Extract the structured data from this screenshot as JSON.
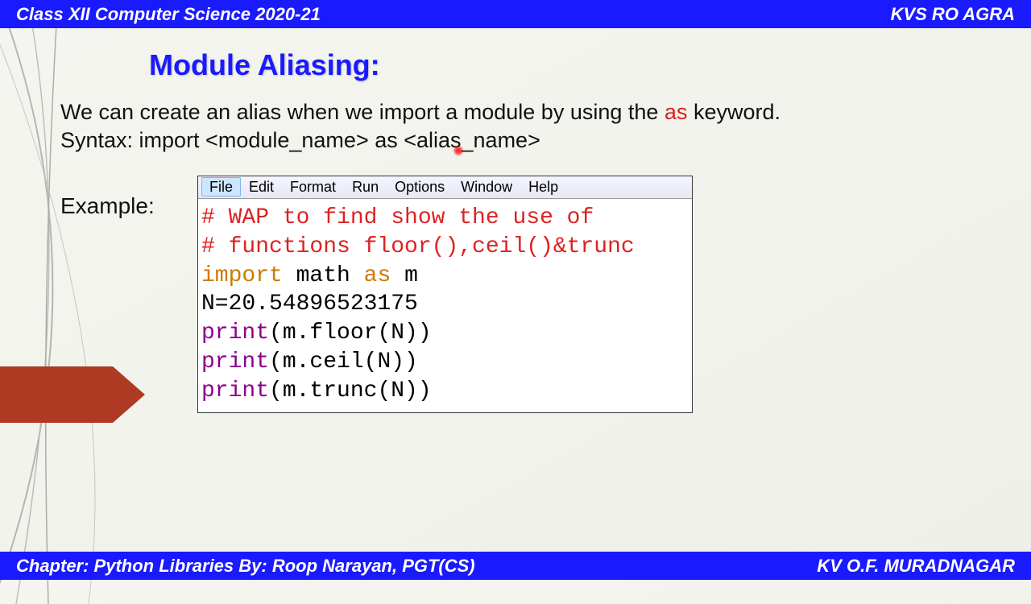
{
  "header": {
    "left": "Class XII Computer Science 2020-21",
    "right": "KVS  RO  AGRA"
  },
  "footer": {
    "left": "Chapter:  Python Libraries    By:  Roop Narayan, PGT(CS)",
    "right": "KV O.F. MURADNAGAR"
  },
  "slide": {
    "title": "Module Aliasing:",
    "para1_pre": "We can create an alias when we import a module by using the ",
    "para1_kw": "as",
    "para1_post": " keyword.",
    "para2": "Syntax: import <module_name> as <alias_name>",
    "example_label": "Example:"
  },
  "ide": {
    "menu": [
      "File",
      "Edit",
      "Format",
      "Run",
      "Options",
      "Window",
      "Help"
    ],
    "selected_menu": "File",
    "code_lines": [
      {
        "segments": [
          {
            "cls": "c-comment",
            "t": "# WAP to find show the use of"
          }
        ]
      },
      {
        "segments": [
          {
            "cls": "c-comment",
            "t": "# functions floor(),ceil()&trunc"
          }
        ]
      },
      {
        "segments": [
          {
            "cls": "c-keyword",
            "t": "import"
          },
          {
            "cls": "c-text",
            "t": " math "
          },
          {
            "cls": "c-keyword",
            "t": "as"
          },
          {
            "cls": "c-text",
            "t": " m"
          }
        ]
      },
      {
        "segments": [
          {
            "cls": "c-text",
            "t": "N=20.54896523175"
          }
        ]
      },
      {
        "segments": [
          {
            "cls": "c-builtin",
            "t": "print"
          },
          {
            "cls": "c-text",
            "t": "(m.floor(N))"
          }
        ]
      },
      {
        "segments": [
          {
            "cls": "c-builtin",
            "t": "print"
          },
          {
            "cls": "c-text",
            "t": "(m.ceil(N))"
          }
        ]
      },
      {
        "segments": [
          {
            "cls": "c-builtin",
            "t": "print"
          },
          {
            "cls": "c-text",
            "t": "(m.trunc(N))"
          }
        ]
      }
    ]
  },
  "colors": {
    "accent_blue": "#1a1aff",
    "arrow_fill": "#af3a24"
  }
}
